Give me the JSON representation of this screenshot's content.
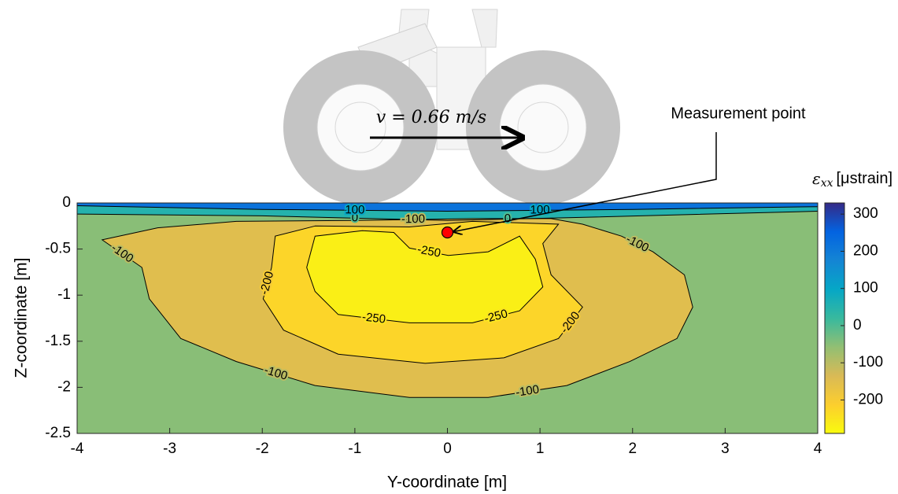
{
  "chart_data": {
    "type": "contour",
    "xlabel": "Y-coordinate [m]",
    "ylabel": "Z-coordinate [m]",
    "xlim": [
      -4,
      4
    ],
    "ylim": [
      -2.5,
      0
    ],
    "xticks": [
      -4,
      -3,
      -2,
      -1,
      0,
      1,
      2,
      3,
      4
    ],
    "yticks": [
      0,
      -0.5,
      -1,
      -1.5,
      -2,
      -2.5
    ],
    "contours": [
      {
        "level": 0,
        "x": [
          -4,
          -2,
          0,
          1.3,
          4
        ],
        "y": [
          -0.12,
          -0.14,
          -0.19,
          -0.16,
          -0.09
        ]
      },
      {
        "level": 100,
        "x": [
          -4,
          -2,
          0,
          2,
          4
        ],
        "y": [
          -0.03,
          -0.07,
          -0.09,
          -0.07,
          -0.04
        ]
      },
      {
        "level": -100,
        "x": [
          -3.73,
          -3.3,
          -3.22,
          -2.88,
          -2.28,
          -1.43,
          -0.41,
          0.44,
          1.29,
          1.97,
          2.48,
          2.65,
          2.56,
          2.22,
          1.88,
          1.46,
          1.12,
          0.27,
          -1.01,
          -2.28,
          -3.13
        ],
        "y": [
          -0.4,
          -0.7,
          -1.04,
          -1.47,
          -1.72,
          -1.98,
          -2.11,
          -2.11,
          -1.98,
          -1.72,
          -1.47,
          -1.13,
          -0.78,
          -0.53,
          -0.36,
          -0.23,
          -0.17,
          -0.17,
          -0.19,
          -0.2,
          -0.27
        ]
      },
      {
        "level": -200,
        "x": [
          -1.43,
          -1.86,
          -1.9,
          -1.99,
          -1.77,
          -1.18,
          -0.24,
          0.61,
          1.2,
          1.46,
          1.12,
          1.03,
          1.2,
          0.27,
          -0.41
        ],
        "y": [
          -0.25,
          -0.36,
          -0.7,
          -1.04,
          -1.38,
          -1.64,
          -1.74,
          -1.68,
          -1.47,
          -1.13,
          -0.78,
          -0.44,
          -0.23,
          -0.2,
          -0.26
        ]
      },
      {
        "level": -250,
        "x": [
          -1.43,
          -1.52,
          -1.43,
          -1.18,
          -0.41,
          0.27,
          0.78,
          1.03,
          0.95,
          0.78,
          0.44,
          0.01,
          -0.41,
          -0.58,
          -0.92
        ],
        "y": [
          -0.36,
          -0.7,
          -0.96,
          -1.21,
          -1.3,
          -1.3,
          -1.17,
          -0.91,
          -0.61,
          -0.36,
          -0.53,
          -0.57,
          -0.49,
          -0.32,
          -0.3
        ]
      }
    ],
    "colormap": [
      "#f9fb0e",
      "#fcce2e",
      "#d9ba56",
      "#92bf73",
      "#38b99e",
      "#06a7c6",
      "#1485d4",
      "#0363e1",
      "#352a87"
    ],
    "clim": [
      -290,
      330
    ],
    "colorbar": {
      "ticks": [
        300,
        200,
        100,
        0,
        -100,
        -200
      ],
      "label": {
        "symbol": "ε",
        "subscript": "xx",
        "unit": "[μstrain]"
      }
    },
    "measurement_point": {
      "x": 0,
      "y": -0.32,
      "label": "Measurement point",
      "color": "#ff0000"
    },
    "velocity_label": "v = 0.66 m/s"
  }
}
